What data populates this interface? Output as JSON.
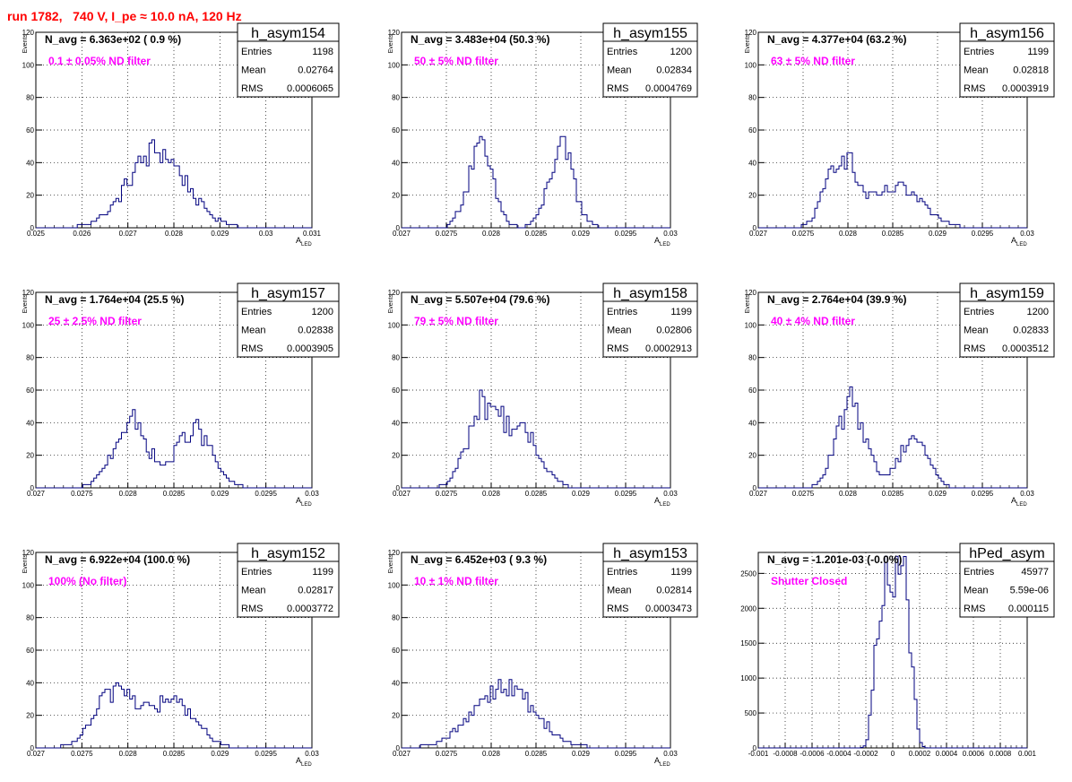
{
  "page": {
    "title": "run 1782,   740 V, I_pe ≈ 10.0 nA, 120 Hz"
  },
  "colors": {
    "histogram": "#00007f",
    "label": "#ff00ff",
    "title": "#ff0000",
    "grid": "#000000"
  },
  "chart_data": [
    {
      "type": "histogram",
      "stats_name": "h_asym154",
      "stats": [
        [
          "Entries",
          "1198"
        ],
        [
          "Mean",
          "0.02764"
        ],
        [
          "RMS",
          "0.0006065"
        ]
      ],
      "n_avg_label": "N_avg = 6.363e+02 ( 0.9 %)",
      "filter_label": "0.1 ± 0.05% ND filter",
      "ylabel": "Events",
      "xlabel": "A",
      "xlabel_sub": "LED",
      "xlim": [
        0.025,
        0.031
      ],
      "ylim": [
        0,
        120
      ],
      "xticks": [
        "0.025",
        "0.026",
        "0.027",
        "0.028",
        "0.029",
        "0.03",
        "0.031"
      ],
      "yticks": [
        "0",
        "20",
        "40",
        "60",
        "80",
        "100",
        "120"
      ],
      "peaks": [
        {
          "center": 0.02764,
          "sigma": 0.00062,
          "height": 47
        }
      ]
    },
    {
      "type": "histogram",
      "stats_name": "h_asym155",
      "stats": [
        [
          "Entries",
          "1200"
        ],
        [
          "Mean",
          "0.02834"
        ],
        [
          "RMS",
          "0.0004769"
        ]
      ],
      "n_avg_label": "N_avg = 3.483e+04 (50.3 %)",
      "filter_label": "50 ± 5% ND filter",
      "ylabel": "Events",
      "xlabel": "A",
      "xlabel_sub": "LED",
      "xlim": [
        0.027,
        0.03
      ],
      "ylim": [
        0,
        120
      ],
      "xticks": [
        "0.027",
        "0.0275",
        "0.028",
        "0.0285",
        "0.029",
        "0.0295",
        "0.03"
      ],
      "yticks": [
        "0",
        "20",
        "40",
        "60",
        "80",
        "100",
        "120"
      ],
      "peaks": [
        {
          "center": 0.02788,
          "sigma": 0.00014,
          "height": 48
        },
        {
          "center": 0.02878,
          "sigma": 0.00014,
          "height": 48
        }
      ]
    },
    {
      "type": "histogram",
      "stats_name": "h_asym156",
      "stats": [
        [
          "Entries",
          "1199"
        ],
        [
          "Mean",
          "0.02818"
        ],
        [
          "RMS",
          "0.0003919"
        ]
      ],
      "n_avg_label": "N_avg = 4.377e+04 (63.2 %)",
      "filter_label": "63 ± 5% ND filter",
      "ylabel": "Events",
      "xlabel": "A",
      "xlabel_sub": "LED",
      "xlim": [
        0.027,
        0.03
      ],
      "ylim": [
        0,
        120
      ],
      "xticks": [
        "0.027",
        "0.0275",
        "0.028",
        "0.0285",
        "0.029",
        "0.0295",
        "0.03"
      ],
      "yticks": [
        "0",
        "20",
        "40",
        "60",
        "80",
        "100",
        "120"
      ],
      "peaks": [
        {
          "center": 0.02792,
          "sigma": 0.00016,
          "height": 44
        },
        {
          "center": 0.02855,
          "sigma": 0.00028,
          "height": 24
        }
      ]
    },
    {
      "type": "histogram",
      "stats_name": "h_asym157",
      "stats": [
        [
          "Entries",
          "1200"
        ],
        [
          "Mean",
          "0.02838"
        ],
        [
          "RMS",
          "0.0003905"
        ]
      ],
      "n_avg_label": "N_avg = 1.764e+04 (25.5 %)",
      "filter_label": "25 ± 2.5% ND filter",
      "ylabel": "Events",
      "xlabel": "A",
      "xlabel_sub": "LED",
      "xlim": [
        0.027,
        0.03
      ],
      "ylim": [
        0,
        120
      ],
      "xticks": [
        "0.027",
        "0.0275",
        "0.028",
        "0.0285",
        "0.029",
        "0.0295",
        "0.03"
      ],
      "yticks": [
        "0",
        "20",
        "40",
        "60",
        "80",
        "100",
        "120"
      ],
      "peaks": [
        {
          "center": 0.02803,
          "sigma": 0.00019,
          "height": 40
        },
        {
          "center": 0.02872,
          "sigma": 0.00019,
          "height": 36
        }
      ]
    },
    {
      "type": "histogram",
      "stats_name": "h_asym158",
      "stats": [
        [
          "Entries",
          "1199"
        ],
        [
          "Mean",
          "0.02806"
        ],
        [
          "RMS",
          "0.0002913"
        ]
      ],
      "n_avg_label": "N_avg = 5.507e+04 (79.6 %)",
      "filter_label": "79 ± 5% ND filter",
      "ylabel": "Events",
      "xlabel": "A",
      "xlabel_sub": "LED",
      "xlim": [
        0.027,
        0.03
      ],
      "ylim": [
        0,
        120
      ],
      "xticks": [
        "0.027",
        "0.0275",
        "0.028",
        "0.0285",
        "0.029",
        "0.0295",
        "0.03"
      ],
      "yticks": [
        "0",
        "20",
        "40",
        "60",
        "80",
        "100",
        "120"
      ],
      "peaks": [
        {
          "center": 0.02792,
          "sigma": 0.00018,
          "height": 50
        },
        {
          "center": 0.02835,
          "sigma": 0.0002,
          "height": 32
        }
      ]
    },
    {
      "type": "histogram",
      "stats_name": "h_asym159",
      "stats": [
        [
          "Entries",
          "1200"
        ],
        [
          "Mean",
          "0.02833"
        ],
        [
          "RMS",
          "0.0003512"
        ]
      ],
      "n_avg_label": "N_avg = 2.764e+04 (39.9 %)",
      "filter_label": "40 ± 4% ND filter",
      "ylabel": "Events",
      "xlabel": "A",
      "xlabel_sub": "LED",
      "xlim": [
        0.027,
        0.03
      ],
      "ylim": [
        0,
        120
      ],
      "xticks": [
        "0.027",
        "0.0275",
        "0.028",
        "0.0285",
        "0.029",
        "0.0295",
        "0.03"
      ],
      "yticks": [
        "0",
        "20",
        "40",
        "60",
        "80",
        "100",
        "120"
      ],
      "peaks": [
        {
          "center": 0.02804,
          "sigma": 0.00016,
          "height": 52
        },
        {
          "center": 0.02873,
          "sigma": 0.00016,
          "height": 32
        }
      ]
    },
    {
      "type": "histogram",
      "stats_name": "h_asym152",
      "stats": [
        [
          "Entries",
          "1199"
        ],
        [
          "Mean",
          "0.02817"
        ],
        [
          "RMS",
          "0.0003772"
        ]
      ],
      "n_avg_label": "N_avg = 6.922e+04 (100.0 %)",
      "filter_label": "100% (No filter)",
      "ylabel": "Events",
      "xlabel": "A",
      "xlabel_sub": "LED",
      "xlim": [
        0.027,
        0.03
      ],
      "ylim": [
        0,
        120
      ],
      "xticks": [
        "0.027",
        "0.0275",
        "0.028",
        "0.0285",
        "0.029",
        "0.0295",
        "0.03"
      ],
      "yticks": [
        "0",
        "20",
        "40",
        "60",
        "80",
        "100",
        "120"
      ],
      "peaks": [
        {
          "center": 0.02788,
          "sigma": 0.00022,
          "height": 36
        },
        {
          "center": 0.0285,
          "sigma": 0.00024,
          "height": 28
        }
      ]
    },
    {
      "type": "histogram",
      "stats_name": "h_asym153",
      "stats": [
        [
          "Entries",
          "1199"
        ],
        [
          "Mean",
          "0.02814"
        ],
        [
          "RMS",
          "0.0003473"
        ]
      ],
      "n_avg_label": "N_avg = 6.452e+03 ( 9.3 %)",
      "filter_label": "10 ± 1% ND filter",
      "ylabel": "Events",
      "xlabel": "A",
      "xlabel_sub": "LED",
      "xlim": [
        0.027,
        0.03
      ],
      "ylim": [
        0,
        120
      ],
      "xticks": [
        "0.027",
        "0.0275",
        "0.028",
        "0.0285",
        "0.029",
        "0.0295",
        "0.03"
      ],
      "yticks": [
        "0",
        "20",
        "40",
        "60",
        "80",
        "100",
        "120"
      ],
      "peaks": [
        {
          "center": 0.02814,
          "sigma": 0.00034,
          "height": 38
        }
      ]
    },
    {
      "type": "histogram",
      "stats_name": "hPed_asym",
      "stats": [
        [
          "Entries",
          "45977"
        ],
        [
          "Mean",
          "5.59e-06"
        ],
        [
          "RMS",
          "0.000115"
        ]
      ],
      "n_avg_label": "N_avg = -1.201e-03 (-0.0%)",
      "filter_label": "Shutter Closed",
      "ylabel": "",
      "xlabel": "",
      "xlabel_sub": "",
      "xlim": [
        -0.001,
        0.001
      ],
      "ylim": [
        0,
        2800
      ],
      "xticks": [
        "-0.001",
        "-0.0008",
        "-0.0006",
        "-0.0004",
        "-0.0002",
        "0",
        "0.0002",
        "0.0004",
        "0.0006",
        "0.0008",
        "0.001"
      ],
      "yticks": [
        "0",
        "500",
        "1000",
        "1500",
        "2000",
        "2500"
      ],
      "peaks": [
        {
          "center": 5.6e-06,
          "sigma": 0.000115,
          "height": 2650,
          "flat": true
        }
      ]
    }
  ]
}
